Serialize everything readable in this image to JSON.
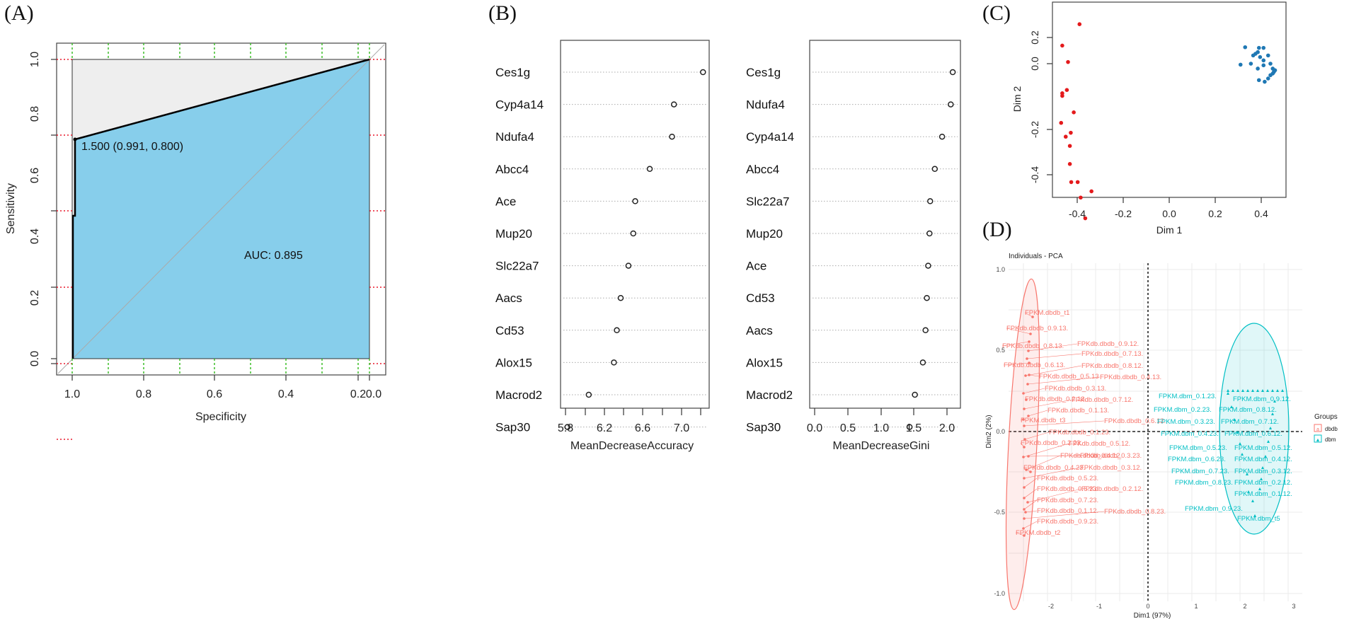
{
  "panels": {
    "A": {
      "label": "(A)"
    },
    "B": {
      "label": "(B)"
    },
    "C": {
      "label": "(C)"
    },
    "D": {
      "label": "(D)"
    }
  },
  "colors": {
    "roc_fill": "#87CEEB",
    "roc_upper_fill": "#EEEEEE",
    "red_grid": "#E8192C",
    "green_grid": "#3DBE29",
    "pca_red": "#E41A1C",
    "pca_blue": "#1F78B4",
    "group_dbdb": "#F8766D",
    "group_dbm": "#00BFC4"
  },
  "chart_data": [
    {
      "id": "A",
      "type": "line",
      "title": "",
      "xlabel": "Specificity",
      "ylabel": "Sensitivity",
      "xlim": [
        1.0,
        0.0
      ],
      "ylim": [
        0.0,
        1.0
      ],
      "x_ticks": [
        "1.0",
        "0.8",
        "0.6",
        "0.4",
        "0.2",
        "0.0"
      ],
      "y_ticks": [
        "0.0",
        "0.2",
        "0.4",
        "0.6",
        "0.8",
        "1.0"
      ],
      "curve": {
        "specificity": [
          1.0,
          1.0,
          0.991,
          0.991,
          0.0
        ],
        "sensitivity": [
          0.0,
          0.6,
          0.6,
          0.8,
          1.0
        ]
      },
      "annotations": {
        "threshold": "1.500 (0.991, 0.800)",
        "auc": "AUC: 0.895"
      },
      "auc": 0.895,
      "grid": "red dotted horizontal at y ticks, green dotted vertical every 0.1"
    },
    {
      "id": "B1",
      "type": "scatter",
      "xlabel": "MeanDecreaseAccuracy",
      "ylabel": "",
      "x_ticks": [
        "5.8",
        "6.2",
        "6.6",
        "7.0"
      ],
      "xlim": [
        5.78,
        7.22
      ],
      "categories": [
        "Ces1g",
        "Cyp4a14",
        "Ndufa4",
        "Abcc4",
        "Ace",
        "Mup20",
        "Slc22a7",
        "Aacs",
        "Cd53",
        "Alox15",
        "Macrod2",
        "Sap30"
      ],
      "values": [
        7.2,
        6.9,
        6.88,
        6.65,
        6.5,
        6.48,
        6.43,
        6.35,
        6.31,
        6.28,
        6.02,
        5.8
      ]
    },
    {
      "id": "B2",
      "type": "scatter",
      "xlabel": "MeanDecreaseGini",
      "ylabel": "",
      "x_ticks": [
        "0.0",
        "0.5",
        "1.0",
        "1.5",
        "2.0"
      ],
      "xlim": [
        0.0,
        2.1
      ],
      "categories": [
        "Ces1g",
        "Ndufa4",
        "Cyp4a14",
        "Abcc4",
        "Slc22a7",
        "Mup20",
        "Ace",
        "Cd53",
        "Aacs",
        "Alox15",
        "Macrod2",
        "Sap30"
      ],
      "values": [
        2.08,
        2.05,
        1.92,
        1.81,
        1.74,
        1.73,
        1.71,
        1.69,
        1.67,
        1.63,
        1.51,
        1.43
      ]
    },
    {
      "id": "C",
      "type": "scatter",
      "xlabel": "Dim 1",
      "ylabel": "Dim 2",
      "x_ticks": [
        "-0.4",
        "-0.2",
        "0.0",
        "0.2",
        "0.4"
      ],
      "y_ticks": [
        "-0.4",
        "-0.2",
        "0.0",
        "0.2"
      ],
      "xlim": [
        -0.5,
        0.5
      ],
      "ylim": [
        -0.49,
        0.34
      ],
      "series": [
        {
          "name": "red",
          "points": [
            [
              -0.4,
              0.33
            ],
            [
              -0.42,
              0.31
            ],
            [
              -0.42,
              0.3
            ],
            [
              -0.415,
              0.295
            ],
            [
              -0.35,
              0.285
            ],
            [
              -0.345,
              0.287
            ],
            [
              -0.44,
              0.255
            ],
            [
              -0.425,
              0.26
            ],
            [
              -0.305,
              0.23
            ],
            [
              -0.435,
              0.215
            ],
            [
              -0.425,
              0.205
            ],
            [
              -0.41,
              0.203
            ],
            [
              -0.345,
              0.21
            ],
            [
              -0.39,
              0.12
            ],
            [
              -0.465,
              0.055
            ],
            [
              -0.44,
              0.005
            ],
            [
              -0.445,
              -0.08
            ],
            [
              -0.465,
              -0.09
            ],
            [
              -0.465,
              -0.098
            ],
            [
              -0.415,
              -0.148
            ],
            [
              -0.47,
              -0.18
            ],
            [
              -0.45,
              -0.222
            ],
            [
              -0.428,
              -0.21
            ],
            [
              -0.432,
              -0.25
            ],
            [
              -0.432,
              -0.305
            ],
            [
              -0.426,
              -0.36
            ],
            [
              -0.398,
              -0.36
            ],
            [
              -0.338,
              -0.388
            ],
            [
              -0.385,
              -0.407
            ],
            [
              -0.365,
              -0.47
            ]
          ]
        },
        {
          "name": "blue",
          "points": [
            [
              0.33,
              0.05
            ],
            [
              0.31,
              -0.003
            ],
            [
              0.355,
              0.0
            ],
            [
              0.365,
              0.025
            ],
            [
              0.375,
              0.03
            ],
            [
              0.385,
              0.035
            ],
            [
              0.39,
              0.048
            ],
            [
              0.41,
              0.048
            ],
            [
              0.395,
              0.02
            ],
            [
              0.385,
              -0.015
            ],
            [
              0.41,
              0.01
            ],
            [
              0.41,
              -0.005
            ],
            [
              0.43,
              0.025
            ],
            [
              0.44,
              0.0
            ],
            [
              0.45,
              -0.015
            ],
            [
              0.455,
              -0.025
            ],
            [
              0.46,
              -0.02
            ],
            [
              0.45,
              -0.03
            ],
            [
              0.44,
              -0.035
            ],
            [
              0.43,
              -0.045
            ],
            [
              0.415,
              -0.055
            ],
            [
              0.39,
              -0.05
            ]
          ]
        }
      ]
    },
    {
      "id": "D",
      "type": "scatter",
      "title": "Individuals - PCA",
      "xlabel": "Dim1 (97%)",
      "ylabel": "Dim2 (2%)",
      "x_ticks": [
        "-2",
        "-1",
        "0",
        "1",
        "2",
        "3"
      ],
      "y_ticks": [
        "-1.0",
        "-0.5",
        "0.0",
        "0.5",
        "1.0"
      ],
      "xlim": [
        -2.8,
        3.2
      ],
      "ylim": [
        -1.02,
        1.05
      ],
      "legend": {
        "title": "Groups",
        "entries": [
          "dbdb",
          "dbm"
        ],
        "position": "right"
      },
      "series": [
        {
          "name": "dbdb",
          "labels": [
            "FPKM.dbdb_t1",
            "FPKdb.dbdb_0.9.13.",
            "FPKdb.dbdb_0.8.13.",
            "FPKdb.dbdb_0.9.12.",
            "FPKdb.dbdb_0.7.13.",
            "FPKdb.dbdb_0.6.13.",
            "FPKdb.dbdb_0.8.12.",
            "FPKdb.dbdb_0.5.13",
            "FPKdb.dbdb_0.4.13.",
            "FPKdb.dbdb_0.3.13.",
            "FPKdb.dbdb_0.2.13.",
            "FPKdb.dbdb_0.7.12.",
            "FPKdb.dbdb_0.1.13.",
            "FPKM.dbdb_t3",
            "FPKdb.dbdb_0.6.12.",
            "FPKdb.dbdb_0.1.23.",
            "FPKdb.dbdb_0.2.23.",
            "FPKdb.dbdb_0.5.12.",
            "FPKdb.dbdb_0.3.23.",
            "FPKdb.dbdb_0.4.12.",
            "FPKdb.dbdb_0.4.23.",
            "FPKdb.dbdb_0.3.12.",
            "FPKdb.dbdb_0.5.23.",
            "FPKdb.dbdb_0.6.23.",
            "FPKdb.dbdb_0.2.12.",
            "FPKdb.dbdb_0.7.23.",
            "FPKdb.dbdb_0.1.12.",
            "FPKdb.dbdb_0.8.23.",
            "FPKdb.dbdb_0.9.23.",
            "FPKM.dbdb_t2"
          ]
        },
        {
          "name": "dbm",
          "labels": [
            "FPKM.dbm_0.1.23.",
            "FPKM.dbm_0.9.12.",
            "FPKM.dbm_0.2.23.",
            "FPKM.dbm_0.8.12.",
            "FPKM.dbm_0.3.23.",
            "FPKM.dbm_0.7.12.",
            "FPKM.dbm_0.4.23.",
            "FPKM.dbm_0.6.12.",
            "FPKM.dbm_0.5.23.",
            "FPKM.dbm_0.5.12.",
            "FPKM.dbm_0.6.23.",
            "FPKM.dbm_0.4.12.",
            "FPKM.dbm_0.7.23.",
            "FPKM.dbm_0.3.12.",
            "FPKM.dbm_0.8.23.",
            "FPKM.dbm_0.2.12.",
            "FPKM.dbm_0.1.12.",
            "FPKM.dbm_0.9.23.",
            "FPKM.dbm_t5"
          ]
        }
      ]
    }
  ],
  "text": {
    "A": {
      "xlabel": "Specificity",
      "ylabel": "Sensitivity",
      "xt": [
        "1.0",
        "0.8",
        "0.6",
        "0.4",
        "0.2",
        "0.0"
      ],
      "yt": [
        "0.0",
        "0.2",
        "0.4",
        "0.6",
        "0.8",
        "1.0"
      ],
      "threshold": "1.500 (0.991, 0.800)",
      "auc": "AUC: 0.895"
    },
    "B1": {
      "xlabel": "MeanDecreaseAccuracy",
      "xt": [
        "5.8",
        "6.2",
        "6.6",
        "7.0"
      ]
    },
    "B2": {
      "xlabel": "MeanDecreaseGini",
      "xt": [
        "0.0",
        "0.5",
        "1.0",
        "1.5",
        "2.0"
      ]
    },
    "C": {
      "xlabel": "Dim 1",
      "ylabel": "Dim 2",
      "xt": [
        "-0.4",
        "-0.2",
        "0.0",
        "0.2",
        "0.4"
      ],
      "yt": [
        "-0.4",
        "-0.2",
        "0.0",
        "0.2"
      ]
    },
    "D": {
      "title": "Individuals - PCA",
      "xlabel": "Dim1 (97%)",
      "ylabel": "Dim2 (2%)",
      "xt": [
        "-2",
        "-1",
        "0",
        "1",
        "2",
        "3"
      ],
      "yt": [
        "-1.0",
        "-0.5",
        "0.0",
        "0.5",
        "1.0"
      ],
      "legend_title": "Groups",
      "legend_dbdb": "dbdb",
      "legend_dbm": "dbm"
    }
  }
}
